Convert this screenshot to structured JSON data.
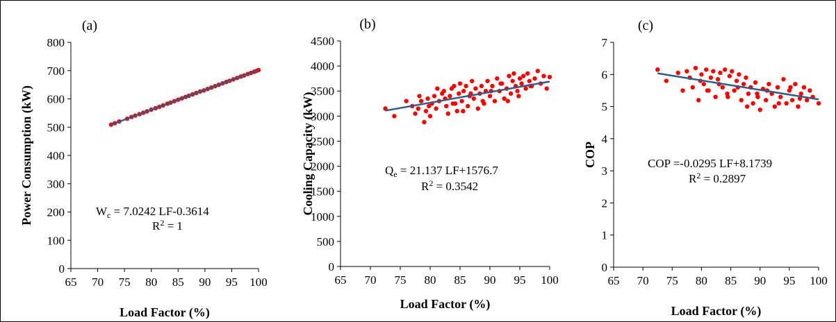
{
  "chart_data": [
    {
      "type": "scatter",
      "panel_label": "(a)",
      "xlabel": "Load Factor (%)",
      "ylabel": "Power Consumption (kW)",
      "xlim": [
        65,
        100
      ],
      "ylim": [
        0,
        800
      ],
      "x_ticks": [
        65,
        70,
        75,
        80,
        85,
        90,
        95,
        100
      ],
      "y_ticks": [
        0,
        100,
        200,
        300,
        400,
        500,
        600,
        700,
        800
      ],
      "equation_symbol": "W",
      "equation_subscript": "c",
      "equation_rest": " = 7.0242 LF-0.3614",
      "r2_label": "R",
      "r2_value": " = 1",
      "trendline": {
        "slope": 7.0242,
        "intercept": -0.3614,
        "x_range": [
          72.5,
          100
        ]
      },
      "series": [
        {
          "x": [
            72.5,
            73.2,
            74.0,
            75.5,
            76.3,
            77.0,
            77.8,
            78.5,
            79.2,
            80.0,
            80.8,
            81.5,
            82.2,
            83.0,
            83.6,
            84.3,
            85.0,
            85.7,
            86.4,
            87.0,
            87.7,
            88.4,
            89.1,
            89.8,
            90.5,
            91.2,
            91.9,
            92.6,
            93.3,
            94.0,
            94.6,
            95.3,
            96.0,
            96.7,
            97.3,
            98.0,
            98.6,
            99.2,
            99.6,
            100.0
          ],
          "y": [
            509,
            514,
            520,
            530,
            536,
            541,
            546,
            551,
            556,
            562,
            567,
            572,
            577,
            583,
            587,
            592,
            597,
            602,
            607,
            611,
            616,
            621,
            626,
            630,
            635,
            640,
            645,
            650,
            655,
            660,
            664,
            669,
            674,
            679,
            683,
            688,
            692,
            696,
            699,
            702
          ]
        }
      ]
    },
    {
      "type": "scatter",
      "panel_label": "(b)",
      "xlabel": "Load Factor (%)",
      "ylabel": "Cooling Capacity (kW)",
      "xlim": [
        65,
        100
      ],
      "ylim": [
        0,
        4500
      ],
      "x_ticks": [
        65,
        70,
        75,
        80,
        85,
        90,
        95,
        100
      ],
      "y_ticks": [
        0,
        500,
        1000,
        1500,
        2000,
        2500,
        3000,
        3500,
        4000,
        4500
      ],
      "equation_symbol": "Q",
      "equation_subscript": "e",
      "equation_rest": " = 21.137 LF+1576.7",
      "r2_label": "R",
      "r2_value": " = 0.3542",
      "trendline": {
        "slope": 21.137,
        "intercept": 1576.7,
        "x_range": [
          72.5,
          100
        ]
      },
      "series": [
        {
          "x": [
            72.5,
            74.0,
            76.0,
            77.0,
            77.5,
            78.0,
            78.5,
            79.0,
            79.3,
            79.6,
            80.0,
            80.3,
            80.7,
            81.0,
            81.5,
            82.0,
            82.3,
            82.7,
            83.0,
            83.3,
            83.6,
            84.0,
            84.2,
            84.5,
            84.8,
            85.0,
            85.3,
            85.6,
            86.0,
            86.3,
            86.6,
            87.0,
            87.3,
            87.6,
            88.0,
            88.3,
            88.6,
            89.0,
            89.3,
            89.6,
            90.0,
            90.4,
            90.8,
            91.2,
            91.6,
            92.0,
            92.4,
            92.8,
            93.2,
            93.5,
            93.8,
            94.0,
            94.3,
            94.6,
            95.0,
            95.3,
            95.6,
            96.0,
            96.3,
            96.6,
            97.0,
            97.5,
            98.0,
            98.5,
            99.0,
            99.5,
            100.0,
            78.2,
            79.8,
            81.2,
            82.5,
            83.8,
            85.5,
            86.8,
            88.8,
            90.2,
            91.8,
            93.0,
            94.8,
            96.8
          ],
          "y": [
            3150,
            3000,
            3300,
            3200,
            3050,
            3150,
            3300,
            2880,
            3100,
            3350,
            3000,
            3250,
            3400,
            3150,
            3300,
            3450,
            3500,
            3200,
            3050,
            3400,
            3550,
            3600,
            3250,
            3100,
            3450,
            3650,
            3300,
            3500,
            3600,
            3200,
            3400,
            3700,
            3350,
            3550,
            3150,
            3450,
            3600,
            3250,
            3500,
            3700,
            3400,
            3600,
            3300,
            3750,
            3500,
            3650,
            3350,
            3550,
            3800,
            3450,
            3700,
            3850,
            3600,
            3500,
            3750,
            3650,
            3800,
            3550,
            3850,
            3700,
            3600,
            3750,
            3900,
            3650,
            3800,
            3550,
            3780,
            3400,
            3200,
            3550,
            3350,
            3250,
            3100,
            3450,
            3300,
            3500,
            3650,
            3300,
            3400,
            3600
          ]
        }
      ]
    },
    {
      "type": "scatter",
      "panel_label": "(c)",
      "xlabel": "Load Factor (%)",
      "ylabel": "COP",
      "xlim": [
        65,
        100
      ],
      "ylim": [
        0,
        7
      ],
      "x_ticks": [
        65,
        70,
        75,
        80,
        85,
        90,
        95,
        100
      ],
      "y_ticks": [
        0,
        1,
        2,
        3,
        4,
        5,
        6,
        7
      ],
      "equation_symbol": "",
      "equation_subscript": "",
      "equation_rest": "COP =-0.0295 LF+8.1739",
      "r2_label": "R",
      "r2_value": " = 0.2897",
      "trendline": {
        "slope": -0.0295,
        "intercept": 8.1739,
        "x_range": [
          72.5,
          100
        ]
      },
      "series": [
        {
          "x": [
            72.5,
            74.0,
            76.0,
            76.8,
            77.5,
            78.0,
            78.5,
            79.0,
            79.5,
            80.0,
            80.4,
            80.8,
            81.2,
            81.6,
            82.0,
            82.4,
            82.8,
            83.2,
            83.6,
            84.0,
            84.4,
            84.8,
            85.2,
            85.6,
            86.0,
            86.4,
            86.8,
            87.2,
            87.6,
            88.0,
            88.4,
            88.8,
            89.2,
            89.6,
            90.0,
            90.5,
            91.0,
            91.5,
            92.0,
            92.5,
            93.0,
            93.5,
            94.0,
            94.5,
            95.0,
            95.5,
            96.0,
            96.5,
            97.0,
            97.5,
            98.0,
            98.5,
            99.0,
            100.0,
            79.8,
            81.0,
            83.0,
            84.5,
            86.2,
            87.8,
            89.5,
            91.2,
            93.2,
            95.2,
            96.8
          ],
          "y": [
            6.15,
            5.8,
            6.05,
            5.5,
            6.1,
            5.9,
            5.6,
            6.2,
            5.2,
            6.0,
            5.7,
            6.15,
            5.5,
            5.9,
            6.1,
            5.3,
            5.85,
            6.05,
            5.6,
            6.15,
            5.4,
            5.95,
            6.1,
            5.5,
            5.8,
            6.0,
            5.2,
            5.7,
            5.9,
            5.4,
            5.6,
            5.1,
            5.75,
            5.3,
            4.9,
            5.55,
            5.2,
            5.7,
            5.4,
            5.0,
            5.6,
            5.3,
            5.85,
            5.1,
            5.5,
            5.2,
            5.7,
            5.0,
            5.4,
            5.6,
            5.2,
            5.5,
            5.3,
            5.1,
            5.8,
            5.5,
            5.7,
            5.3,
            5.6,
            5.0,
            5.4,
            5.5,
            5.1,
            5.6,
            5.25
          ]
        }
      ]
    }
  ],
  "colors": {
    "points": "#ff0000",
    "trendline": "#2f5b86",
    "axis": "#000000"
  }
}
